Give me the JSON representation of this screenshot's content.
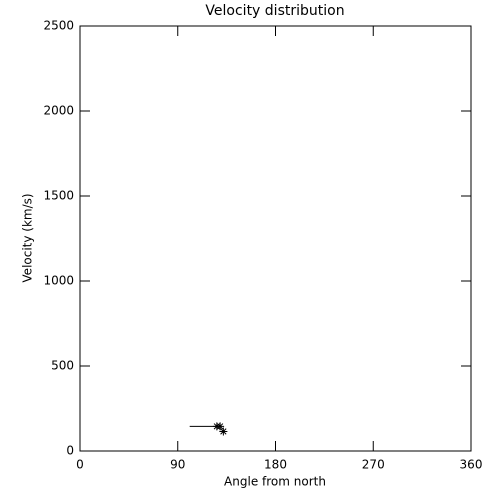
{
  "chart_data": {
    "type": "scatter",
    "title": "Velocity distribution",
    "x_label": "Angle from north",
    "y_label": "Velocity (km/s)",
    "xlim": [
      0,
      360
    ],
    "ylim": [
      0,
      2500
    ],
    "xticks": [
      0,
      90,
      180,
      270,
      360
    ],
    "yticks": [
      0,
      500,
      1000,
      1500,
      2000,
      2500
    ],
    "series": [
      {
        "type": "scatter",
        "marker": "asterisk",
        "color": "#000000",
        "x": [
          126,
          129,
          132
        ],
        "values": [
          145,
          145,
          115
        ]
      },
      {
        "type": "line",
        "color": "#000000",
        "x": [
          101,
          126
        ],
        "values": [
          145,
          145
        ]
      }
    ]
  }
}
